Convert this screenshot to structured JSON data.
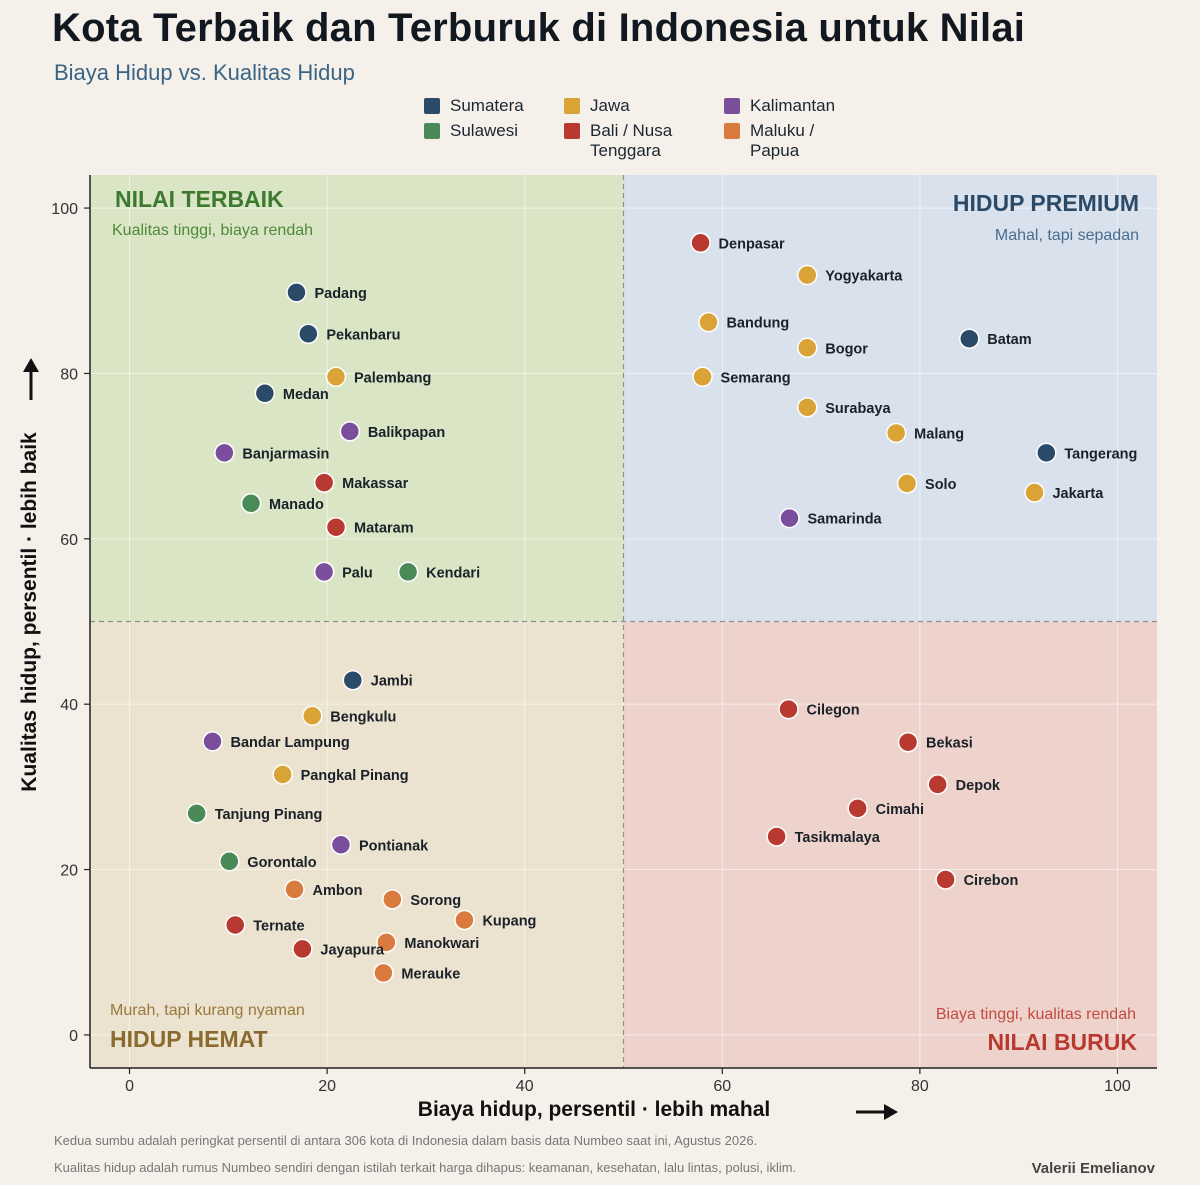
{
  "title": "Kota Terbaik dan Terburuk di Indonesia untuk Nilai",
  "subtitle": "Biaya Hidup vs. Kualitas Hidup",
  "legend": [
    {
      "name": "Sumatera",
      "color": "#2b4a68"
    },
    {
      "name": "Jawa",
      "color": "#d9a336"
    },
    {
      "name": "Kalimantan",
      "color": "#7b4e9c"
    },
    {
      "name": "Sulawesi",
      "color": "#4a8a57"
    },
    {
      "name": "Bali / Nusa Tenggara",
      "color": "#b8392f"
    },
    {
      "name": "Maluku / Papua",
      "color": "#d97b3e"
    }
  ],
  "quadrants": {
    "top_left": {
      "title": "NILAI TERBAIK",
      "sub": "Kualitas tinggi, biaya rendah",
      "color": "#3d7a30"
    },
    "top_right": {
      "title": "HIDUP PREMIUM",
      "sub": "Mahal, tapi sepadan",
      "color": "#2b4a68"
    },
    "bottom_left": {
      "title": "HIDUP HEMAT",
      "sub": "Murah, tapi kurang nyaman",
      "color": "#8a6a2e"
    },
    "bottom_right": {
      "title": "NILAI BURUK",
      "sub": "Biaya tinggi, kualitas rendah",
      "color": "#b8392f"
    }
  },
  "footnotes": [
    "Kedua sumbu adalah peringkat persentil di antara 306 kota di Indonesia dalam basis data Numbeo saat ini, Agustus 2026.",
    "Kualitas hidup adalah rumus Numbeo sendiri dengan istilah terkait harga dihapus: keamanan, kesehatan, lalu lintas, polusi, iklim."
  ],
  "author": "Valerii Emelianov",
  "chart_data": {
    "type": "scatter",
    "xlabel": "Biaya hidup, persentil  ·  lebih mahal",
    "ylabel": "Kualitas hidup, persentil  ·  lebih baik",
    "xlim": [
      -4,
      104
    ],
    "ylim": [
      -4,
      104
    ],
    "x_ticks": [
      0,
      20,
      40,
      60,
      80,
      100
    ],
    "y_ticks": [
      0,
      20,
      40,
      60,
      80,
      100
    ],
    "grid": true,
    "divider_x": 50,
    "divider_y": 50,
    "points": [
      {
        "name": "Padang",
        "x": 16.9,
        "y": 89.8,
        "region": "Sumatera"
      },
      {
        "name": "Pekanbaru",
        "x": 18.1,
        "y": 84.8,
        "region": "Sumatera"
      },
      {
        "name": "Palembang",
        "x": 20.9,
        "y": 79.6,
        "region": "Jawa"
      },
      {
        "name": "Medan",
        "x": 13.7,
        "y": 77.6,
        "region": "Sumatera"
      },
      {
        "name": "Balikpapan",
        "x": 22.3,
        "y": 73.0,
        "region": "Kalimantan"
      },
      {
        "name": "Banjarmasin",
        "x": 9.6,
        "y": 70.4,
        "region": "Kalimantan"
      },
      {
        "name": "Makassar",
        "x": 19.7,
        "y": 66.8,
        "region": "Bali / Nusa Tenggara"
      },
      {
        "name": "Manado",
        "x": 12.3,
        "y": 64.3,
        "region": "Sulawesi"
      },
      {
        "name": "Mataram",
        "x": 20.9,
        "y": 61.4,
        "region": "Bali / Nusa Tenggara"
      },
      {
        "name": "Palu",
        "x": 19.7,
        "y": 56.0,
        "region": "Kalimantan"
      },
      {
        "name": "Kendari",
        "x": 28.2,
        "y": 56.0,
        "region": "Sulawesi"
      },
      {
        "name": "Denpasar",
        "x": 57.8,
        "y": 95.8,
        "region": "Bali / Nusa Tenggara"
      },
      {
        "name": "Yogyakarta",
        "x": 68.6,
        "y": 91.9,
        "region": "Jawa"
      },
      {
        "name": "Bandung",
        "x": 58.6,
        "y": 86.2,
        "region": "Jawa"
      },
      {
        "name": "Bogor",
        "x": 68.6,
        "y": 83.1,
        "region": "Jawa"
      },
      {
        "name": "Batam",
        "x": 85.0,
        "y": 84.2,
        "region": "Sumatera"
      },
      {
        "name": "Semarang",
        "x": 58.0,
        "y": 79.6,
        "region": "Jawa"
      },
      {
        "name": "Surabaya",
        "x": 68.6,
        "y": 75.9,
        "region": "Jawa"
      },
      {
        "name": "Malang",
        "x": 77.6,
        "y": 72.8,
        "region": "Jawa"
      },
      {
        "name": "Tangerang",
        "x": 92.8,
        "y": 70.4,
        "region": "Sumatera"
      },
      {
        "name": "Solo",
        "x": 78.7,
        "y": 66.7,
        "region": "Jawa"
      },
      {
        "name": "Jakarta",
        "x": 91.6,
        "y": 65.6,
        "region": "Jawa"
      },
      {
        "name": "Samarinda",
        "x": 66.8,
        "y": 62.5,
        "region": "Kalimantan"
      },
      {
        "name": "Jambi",
        "x": 22.6,
        "y": 42.9,
        "region": "Sumatera"
      },
      {
        "name": "Bengkulu",
        "x": 18.5,
        "y": 38.6,
        "region": "Jawa"
      },
      {
        "name": "Bandar Lampung",
        "x": 8.4,
        "y": 35.5,
        "region": "Kalimantan"
      },
      {
        "name": "Pangkal Pinang",
        "x": 15.5,
        "y": 31.5,
        "region": "Jawa"
      },
      {
        "name": "Tanjung Pinang",
        "x": 6.8,
        "y": 26.8,
        "region": "Sulawesi"
      },
      {
        "name": "Pontianak",
        "x": 21.4,
        "y": 23.0,
        "region": "Kalimantan"
      },
      {
        "name": "Gorontalo",
        "x": 10.1,
        "y": 21.0,
        "region": "Sulawesi"
      },
      {
        "name": "Ambon",
        "x": 16.7,
        "y": 17.6,
        "region": "Maluku / Papua"
      },
      {
        "name": "Sorong",
        "x": 26.6,
        "y": 16.4,
        "region": "Maluku / Papua"
      },
      {
        "name": "Kupang",
        "x": 33.9,
        "y": 13.9,
        "region": "Maluku / Papua"
      },
      {
        "name": "Ternate",
        "x": 10.7,
        "y": 13.3,
        "region": "Bali / Nusa Tenggara"
      },
      {
        "name": "Manokwari",
        "x": 26.0,
        "y": 11.2,
        "region": "Maluku / Papua"
      },
      {
        "name": "Jayapura",
        "x": 17.5,
        "y": 10.4,
        "region": "Bali / Nusa Tenggara"
      },
      {
        "name": "Merauke",
        "x": 25.7,
        "y": 7.5,
        "region": "Maluku / Papua"
      },
      {
        "name": "Cilegon",
        "x": 66.7,
        "y": 39.4,
        "region": "Bali / Nusa Tenggara"
      },
      {
        "name": "Bekasi",
        "x": 78.8,
        "y": 35.4,
        "region": "Bali / Nusa Tenggara"
      },
      {
        "name": "Depok",
        "x": 81.8,
        "y": 30.3,
        "region": "Bali / Nusa Tenggara"
      },
      {
        "name": "Cimahi",
        "x": 73.7,
        "y": 27.4,
        "region": "Bali / Nusa Tenggara"
      },
      {
        "name": "Tasikmalaya",
        "x": 65.5,
        "y": 24.0,
        "region": "Bali / Nusa Tenggara"
      },
      {
        "name": "Cirebon",
        "x": 82.6,
        "y": 18.8,
        "region": "Bali / Nusa Tenggara"
      }
    ]
  }
}
